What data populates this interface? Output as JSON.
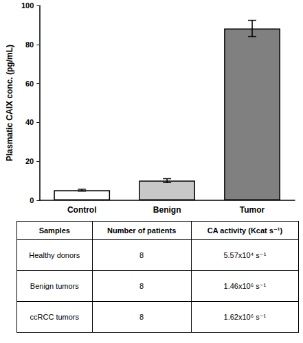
{
  "chart_data": {
    "type": "bar",
    "y_label": "Plasmatic CAIX conc. (pg/mL)",
    "categories": [
      "Control",
      "Benign",
      "Tumor"
    ],
    "values": [
      5.2,
      10.1,
      88.2
    ],
    "errors": [
      0.5,
      1.0,
      4.2
    ],
    "colors": [
      "#ffffff",
      "#c8c8c8",
      "#808080"
    ],
    "ylim": [
      0,
      100
    ],
    "yticks": [
      0,
      20,
      40,
      60,
      80,
      100
    ],
    "grid": false
  },
  "table": {
    "header": [
      "Samples",
      "Number of patients",
      "CA activity (Kcat s⁻¹)"
    ],
    "rows": [
      [
        "Healthy donors",
        8,
        "5.57x10⁴ s⁻¹"
      ],
      [
        "Benign tumors",
        8,
        "1.46x10⁶ s⁻¹"
      ],
      [
        "ccRCC tumors",
        8,
        "1.62x10⁶ s⁻¹"
      ]
    ]
  }
}
